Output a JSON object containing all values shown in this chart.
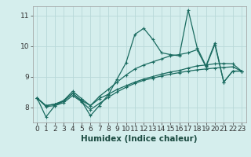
{
  "title": "",
  "xlabel": "Humidex (Indice chaleur)",
  "bg_color": "#d5eeed",
  "grid_color": "#b8d8d8",
  "line_color": "#1a6b60",
  "x_data": [
    0,
    1,
    2,
    3,
    4,
    5,
    6,
    7,
    8,
    9,
    10,
    11,
    12,
    13,
    14,
    15,
    16,
    17,
    18,
    19,
    20,
    21,
    22,
    23
  ],
  "series1": [
    8.3,
    7.68,
    8.05,
    8.2,
    8.45,
    8.2,
    7.72,
    8.05,
    8.4,
    8.92,
    9.45,
    10.38,
    10.58,
    10.22,
    9.78,
    9.72,
    9.68,
    11.18,
    9.95,
    9.35,
    10.1,
    8.82,
    9.18,
    9.18
  ],
  "series2": [
    8.3,
    8.05,
    8.1,
    8.22,
    8.52,
    8.28,
    8.05,
    8.35,
    8.58,
    8.82,
    9.05,
    9.25,
    9.38,
    9.48,
    9.58,
    9.68,
    9.72,
    9.78,
    9.88,
    9.32,
    10.05,
    8.82,
    9.18,
    9.18
  ],
  "series3": [
    8.3,
    8.05,
    8.1,
    8.2,
    8.45,
    8.22,
    8.05,
    8.28,
    8.42,
    8.58,
    8.7,
    8.82,
    8.92,
    9.0,
    9.08,
    9.15,
    9.2,
    9.28,
    9.35,
    9.38,
    9.42,
    9.43,
    9.42,
    9.18
  ],
  "series4": [
    8.3,
    8.02,
    8.05,
    8.15,
    8.38,
    8.18,
    7.92,
    8.12,
    8.32,
    8.5,
    8.65,
    8.78,
    8.88,
    8.95,
    9.02,
    9.08,
    9.13,
    9.18,
    9.22,
    9.25,
    9.28,
    9.3,
    9.32,
    9.18
  ],
  "xlim": [
    -0.5,
    23.5
  ],
  "ylim": [
    7.5,
    11.3
  ],
  "yticks": [
    8,
    9,
    10,
    11
  ],
  "xticks": [
    0,
    1,
    2,
    3,
    4,
    5,
    6,
    7,
    8,
    9,
    10,
    11,
    12,
    13,
    14,
    15,
    16,
    17,
    18,
    19,
    20,
    21,
    22,
    23
  ],
  "tick_fontsize": 6.5,
  "xlabel_fontsize": 7.5
}
